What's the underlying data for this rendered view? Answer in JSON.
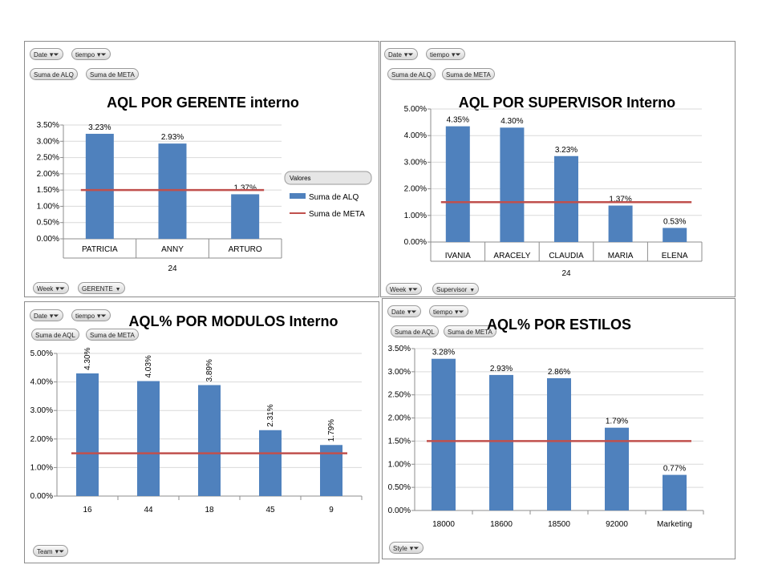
{
  "colors": {
    "bar": "#4f81bd",
    "meta_line": "#c0504d",
    "grid": "#d9d9d9",
    "axis": "#8c8c8c",
    "panel_border": "#8c8c8c"
  },
  "icons": {
    "filter": "funnel-icon",
    "dropdown": "dropdown-arrow-icon"
  },
  "chart_data": [
    {
      "id": "gerente",
      "type": "bar",
      "title": "AQL POR GERENTE interno",
      "categories": [
        "PATRICIA",
        "ANNY",
        "ARTURO"
      ],
      "group_label": "24",
      "series": [
        {
          "name": "Suma de ALQ",
          "type": "bar",
          "values": [
            0.0323,
            0.0293,
            0.0137
          ]
        },
        {
          "name": "Suma de META",
          "type": "line",
          "values": [
            0.015,
            0.015,
            0.015
          ]
        }
      ],
      "data_labels": [
        "3.23%",
        "2.93%",
        "1.37%"
      ],
      "ylim": [
        0,
        0.035
      ],
      "yticks": [
        "0.00%",
        "0.50%",
        "1.00%",
        "1.50%",
        "2.00%",
        "2.50%",
        "3.00%",
        "3.50%"
      ],
      "grid": true,
      "legend": {
        "title": "Valores",
        "position": "right"
      },
      "top_buttons": [
        "Date",
        "tiempo"
      ],
      "value_buttons": [
        "Suma de ALQ",
        "Suma de META"
      ],
      "bottom_buttons": [
        "Week",
        "GERENTE"
      ]
    },
    {
      "id": "supervisor",
      "type": "bar",
      "title": "AQL POR SUPERVISOR Interno",
      "categories": [
        "IVANIA",
        "ARACELY",
        "CLAUDIA",
        "MARIA",
        "ELENA"
      ],
      "group_label": "24",
      "series": [
        {
          "name": "Suma de ALQ",
          "type": "bar",
          "values": [
            0.0435,
            0.043,
            0.0323,
            0.0137,
            0.0053
          ]
        },
        {
          "name": "Suma de META",
          "type": "line",
          "values": [
            0.015,
            0.015,
            0.015,
            0.015,
            0.015
          ]
        }
      ],
      "data_labels": [
        "4.35%",
        "4.30%",
        "3.23%",
        "1.37%",
        "0.53%"
      ],
      "ylim": [
        0,
        0.05
      ],
      "yticks": [
        "0.00%",
        "1.00%",
        "2.00%",
        "3.00%",
        "4.00%",
        "5.00%"
      ],
      "grid": true,
      "top_buttons": [
        "Date",
        "tiempo"
      ],
      "value_buttons": [
        "Suma de ALQ",
        "Suma de META"
      ],
      "bottom_buttons": [
        "Week",
        "Supervisor"
      ]
    },
    {
      "id": "modulos",
      "type": "bar",
      "title": "AQL% POR MODULOS Interno",
      "categories": [
        "16",
        "44",
        "18",
        "45",
        "9"
      ],
      "series": [
        {
          "name": "Suma de AQL",
          "type": "bar",
          "values": [
            0.043,
            0.0403,
            0.0389,
            0.0231,
            0.0179
          ]
        },
        {
          "name": "Suma de META",
          "type": "line",
          "values": [
            0.015,
            0.015,
            0.015,
            0.015,
            0.015
          ]
        }
      ],
      "data_labels": [
        "4.30%",
        "4.03%",
        "3.89%",
        "2.31%",
        "1.79%"
      ],
      "ylim": [
        0,
        0.05
      ],
      "yticks": [
        "0.00%",
        "1.00%",
        "2.00%",
        "3.00%",
        "4.00%",
        "5.00%"
      ],
      "grid": true,
      "top_buttons": [
        "Date",
        "tiempo"
      ],
      "value_buttons": [
        "Suma de AQL",
        "Suma de META"
      ],
      "bottom_buttons": [
        "Team"
      ]
    },
    {
      "id": "estilos",
      "type": "bar",
      "title": "AQL% POR ESTILOS",
      "categories": [
        "18000",
        "18600",
        "18500",
        "92000",
        "Marketing"
      ],
      "series": [
        {
          "name": "Suma de AQL",
          "type": "bar",
          "values": [
            0.0328,
            0.0293,
            0.0286,
            0.0179,
            0.0077
          ]
        },
        {
          "name": "Suma de META",
          "type": "line",
          "values": [
            0.015,
            0.015,
            0.015,
            0.015,
            0.015
          ]
        }
      ],
      "data_labels": [
        "3.28%",
        "2.93%",
        "2.86%",
        "1.79%",
        "0.77%"
      ],
      "ylim": [
        0,
        0.035
      ],
      "yticks": [
        "0.00%",
        "0.50%",
        "1.00%",
        "1.50%",
        "2.00%",
        "2.50%",
        "3.00%",
        "3.50%"
      ],
      "grid": true,
      "top_buttons": [
        "Date",
        "tiempo"
      ],
      "value_buttons": [
        "Suma de AQL",
        "Suma de META"
      ],
      "bottom_buttons": [
        "Style"
      ]
    }
  ]
}
